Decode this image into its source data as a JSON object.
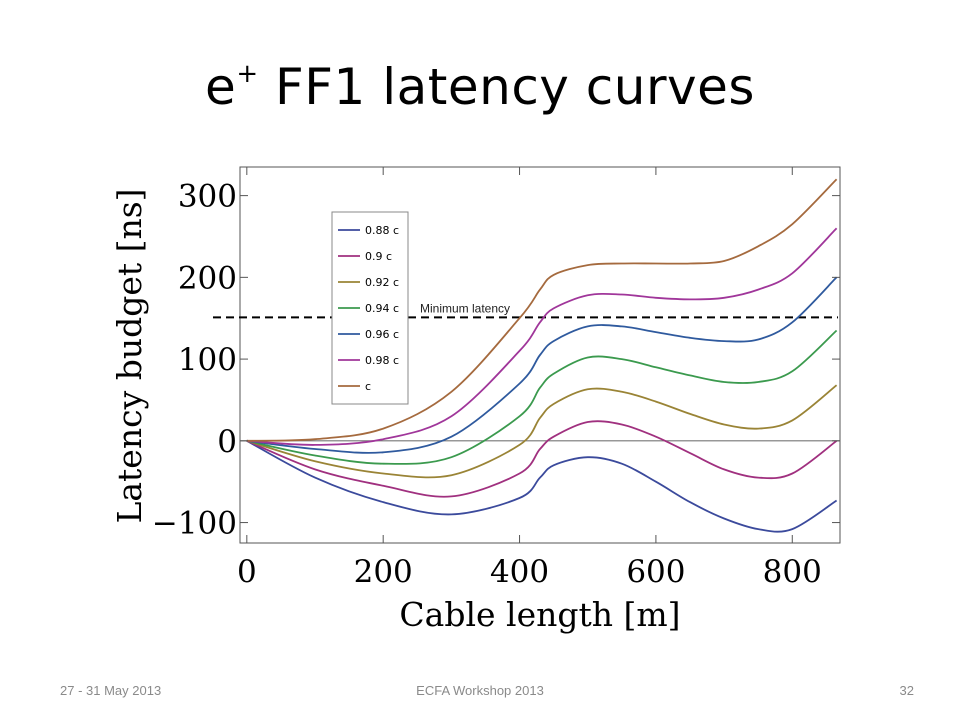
{
  "slide": {
    "title_main": "e",
    "title_sup": "+",
    "title_rest": " FF1 latency curves"
  },
  "footer": {
    "date": "27 - 31 May 2013",
    "event": "ECFA Workshop 2013",
    "page": "32"
  },
  "chart_data": {
    "type": "line",
    "xlabel": "Cable length [m]",
    "ylabel": "Latency budget [ns]",
    "xlim": [
      -10,
      870
    ],
    "ylim": [
      -125,
      335
    ],
    "xticks": [
      0,
      200,
      400,
      600,
      800
    ],
    "yticks": [
      -100,
      0,
      100,
      200,
      300
    ],
    "ytick_labels": [
      "−100",
      "0",
      "100",
      "200",
      "300"
    ],
    "grid": false,
    "legend_position": "top-left",
    "reference_line": {
      "y": 151,
      "label": "Minimum latency",
      "style": "dashed"
    },
    "zero_line": {
      "y": 0
    },
    "x": [
      0,
      100,
      200,
      300,
      400,
      430,
      450,
      500,
      550,
      600,
      650,
      700,
      750,
      800,
      865
    ],
    "series": [
      {
        "name": "0.88 c",
        "color": "#3b4a9c",
        "values": [
          0,
          -45,
          -75,
          -90,
          -70,
          -45,
          -30,
          -20,
          -28,
          -50,
          -75,
          -95,
          -108,
          -108,
          -73
        ]
      },
      {
        "name": "0.9 c",
        "color": "#a0307f",
        "values": [
          0,
          -35,
          -55,
          -68,
          -40,
          -10,
          5,
          23,
          20,
          5,
          -15,
          -35,
          -45,
          -40,
          0
        ]
      },
      {
        "name": "0.92 c",
        "color": "#9a8436",
        "values": [
          0,
          -25,
          -40,
          -42,
          -5,
          28,
          45,
          63,
          60,
          48,
          33,
          20,
          15,
          25,
          68
        ]
      },
      {
        "name": "0.94 c",
        "color": "#3b9a4e",
        "values": [
          0,
          -18,
          -28,
          -20,
          30,
          65,
          82,
          102,
          100,
          90,
          80,
          72,
          72,
          85,
          135
        ]
      },
      {
        "name": "0.96 c",
        "color": "#2f5a9e",
        "values": [
          0,
          -10,
          -14,
          5,
          70,
          105,
          122,
          140,
          140,
          133,
          126,
          122,
          124,
          145,
          200
        ]
      },
      {
        "name": "0.98 c",
        "color": "#a0369a",
        "values": [
          0,
          -5,
          2,
          30,
          110,
          145,
          162,
          178,
          179,
          175,
          173,
          175,
          185,
          205,
          260
        ]
      },
      {
        "name": "c",
        "color": "#a56a3e",
        "values": [
          0,
          2,
          15,
          60,
          150,
          185,
          203,
          215,
          217,
          217,
          217,
          220,
          238,
          265,
          320
        ]
      }
    ]
  }
}
